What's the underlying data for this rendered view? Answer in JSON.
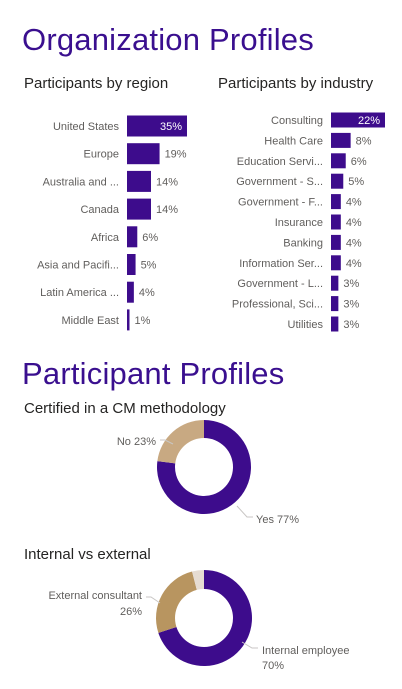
{
  "colors": {
    "primary": "#3d0c8c",
    "title": "#3a0f8f",
    "tan": "#c8a982",
    "tan_dark": "#b89560",
    "light": "#e6dcd2",
    "axis": "#c8c6c4",
    "label": "#605e5c"
  },
  "sections": {
    "organization_title": "Organization Profiles",
    "participant_title": "Participant Profiles"
  },
  "chart_data": [
    {
      "type": "bar",
      "orientation": "horizontal",
      "title": "Participants by region",
      "categories": [
        "United States",
        "Europe",
        "Australia and ...",
        "Canada",
        "Africa",
        "Asia and Pacifi...",
        "Latin America ...",
        "Middle East"
      ],
      "values": [
        35,
        19,
        14,
        14,
        6,
        5,
        4,
        1
      ],
      "value_labels": [
        "35%",
        "19%",
        "14%",
        "14%",
        "6%",
        "5%",
        "4%",
        "1%"
      ],
      "unit": "%"
    },
    {
      "type": "bar",
      "orientation": "horizontal",
      "title": "Participants by industry",
      "categories": [
        "Consulting",
        "Health Care",
        "Education Servi...",
        "Government - S...",
        "Government - F...",
        "Insurance",
        "Banking",
        "Information Ser...",
        "Government - L...",
        "Professional, Sci...",
        "Utilities"
      ],
      "values": [
        22,
        8,
        6,
        5,
        4,
        4,
        4,
        4,
        3,
        3,
        3
      ],
      "value_labels": [
        "22%",
        "8%",
        "6%",
        "5%",
        "4%",
        "4%",
        "4%",
        "4%",
        "3%",
        "3%",
        "3%"
      ],
      "unit": "%"
    },
    {
      "type": "pie",
      "donut": true,
      "title": "Certified in a CM methodology",
      "slices": [
        {
          "label": "Yes 77%",
          "value": 77,
          "color": "#3d0c8c"
        },
        {
          "label": "No 23%",
          "value": 23,
          "color": "#c8a982"
        }
      ]
    },
    {
      "type": "pie",
      "donut": true,
      "title": "Internal vs external",
      "slices": [
        {
          "label": "Internal employee 70%",
          "value": 70,
          "color": "#3d0c8c"
        },
        {
          "label": "External consultant 26%",
          "value": 26,
          "color": "#b89560"
        },
        {
          "label": "",
          "value": 4,
          "color": "#e6dcd2"
        }
      ]
    }
  ]
}
